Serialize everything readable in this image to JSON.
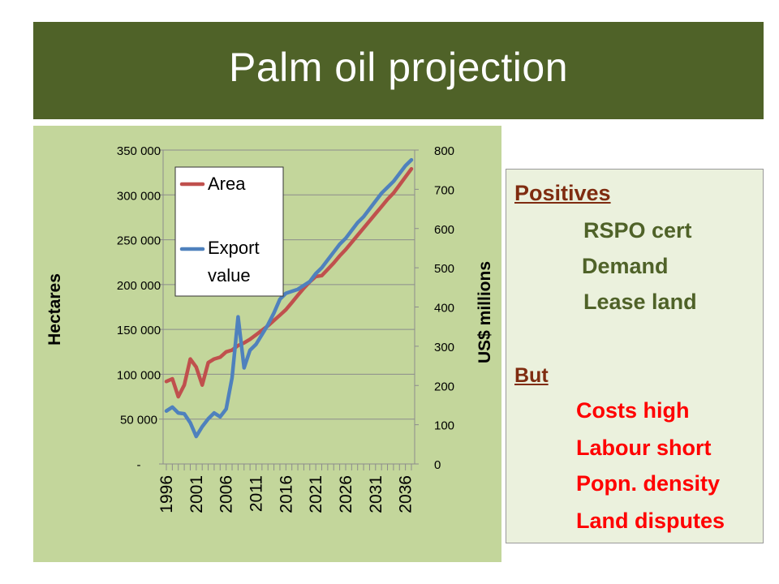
{
  "slide": {
    "title": "Palm oil projection"
  },
  "info": {
    "positives_heading": "Positives",
    "positives": [
      "RSPO cert",
      "Demand",
      "Lease land"
    ],
    "but_heading": "But",
    "negatives": [
      "Costs high",
      "Labour short",
      "Popn. density",
      "Land disputes"
    ]
  },
  "colors": {
    "title_bar": "#4f6228",
    "panel": "#c3d69b",
    "info_box": "#ebf1dd",
    "positives_text": "#4f6228",
    "negatives_text": "#ff0000",
    "headings_text": "#7f2c10",
    "area_line": "#c0504d",
    "export_line": "#4f81bd"
  },
  "chart_data": {
    "type": "line",
    "title": "",
    "xlabel": "",
    "y_left_label": "Hectares",
    "y_right_label": "US$ millions",
    "y_left_lim": [
      0,
      350000
    ],
    "y_right_lim": [
      0,
      800
    ],
    "y_left_ticks": [
      "-",
      "50 000",
      "100 000",
      "150 000",
      "200 000",
      "250 000",
      "300 000",
      "350 000"
    ],
    "y_right_ticks": [
      "0",
      "100",
      "200",
      "300",
      "400",
      "500",
      "600",
      "700",
      "800"
    ],
    "x_tick_labels": [
      "1996",
      "2001",
      "2006",
      "2011",
      "2016",
      "2021",
      "2026",
      "2031",
      "2036"
    ],
    "x": [
      1996,
      1997,
      1998,
      1999,
      2000,
      2001,
      2002,
      2003,
      2004,
      2005,
      2006,
      2007,
      2008,
      2009,
      2010,
      2011,
      2012,
      2013,
      2014,
      2015,
      2016,
      2017,
      2018,
      2019,
      2020,
      2021,
      2022,
      2023,
      2024,
      2025,
      2026,
      2027,
      2028,
      2029,
      2030,
      2031,
      2032,
      2033,
      2034,
      2035,
      2036,
      2037
    ],
    "legend": "top-left",
    "grid": "horizontal",
    "series": [
      {
        "name": "Area",
        "axis": "left",
        "values": [
          92000,
          95000,
          75000,
          88000,
          117000,
          108000,
          88000,
          113000,
          117000,
          119000,
          125000,
          127000,
          132000,
          135000,
          139000,
          144000,
          149000,
          154000,
          160000,
          166000,
          172000,
          180000,
          188000,
          196000,
          203000,
          209000,
          210000,
          217000,
          224000,
          232000,
          239000,
          247000,
          255000,
          263000,
          271000,
          279000,
          287000,
          295000,
          302000,
          311000,
          320000,
          329000
        ]
      },
      {
        "name": "Export value",
        "axis": "right",
        "values": [
          135,
          145,
          130,
          128,
          105,
          70,
          95,
          115,
          130,
          120,
          140,
          220,
          375,
          245,
          290,
          305,
          330,
          355,
          385,
          420,
          435,
          440,
          445,
          455,
          465,
          485,
          500,
          520,
          540,
          560,
          575,
          595,
          615,
          630,
          650,
          670,
          690,
          705,
          720,
          740,
          760,
          775
        ]
      }
    ]
  }
}
